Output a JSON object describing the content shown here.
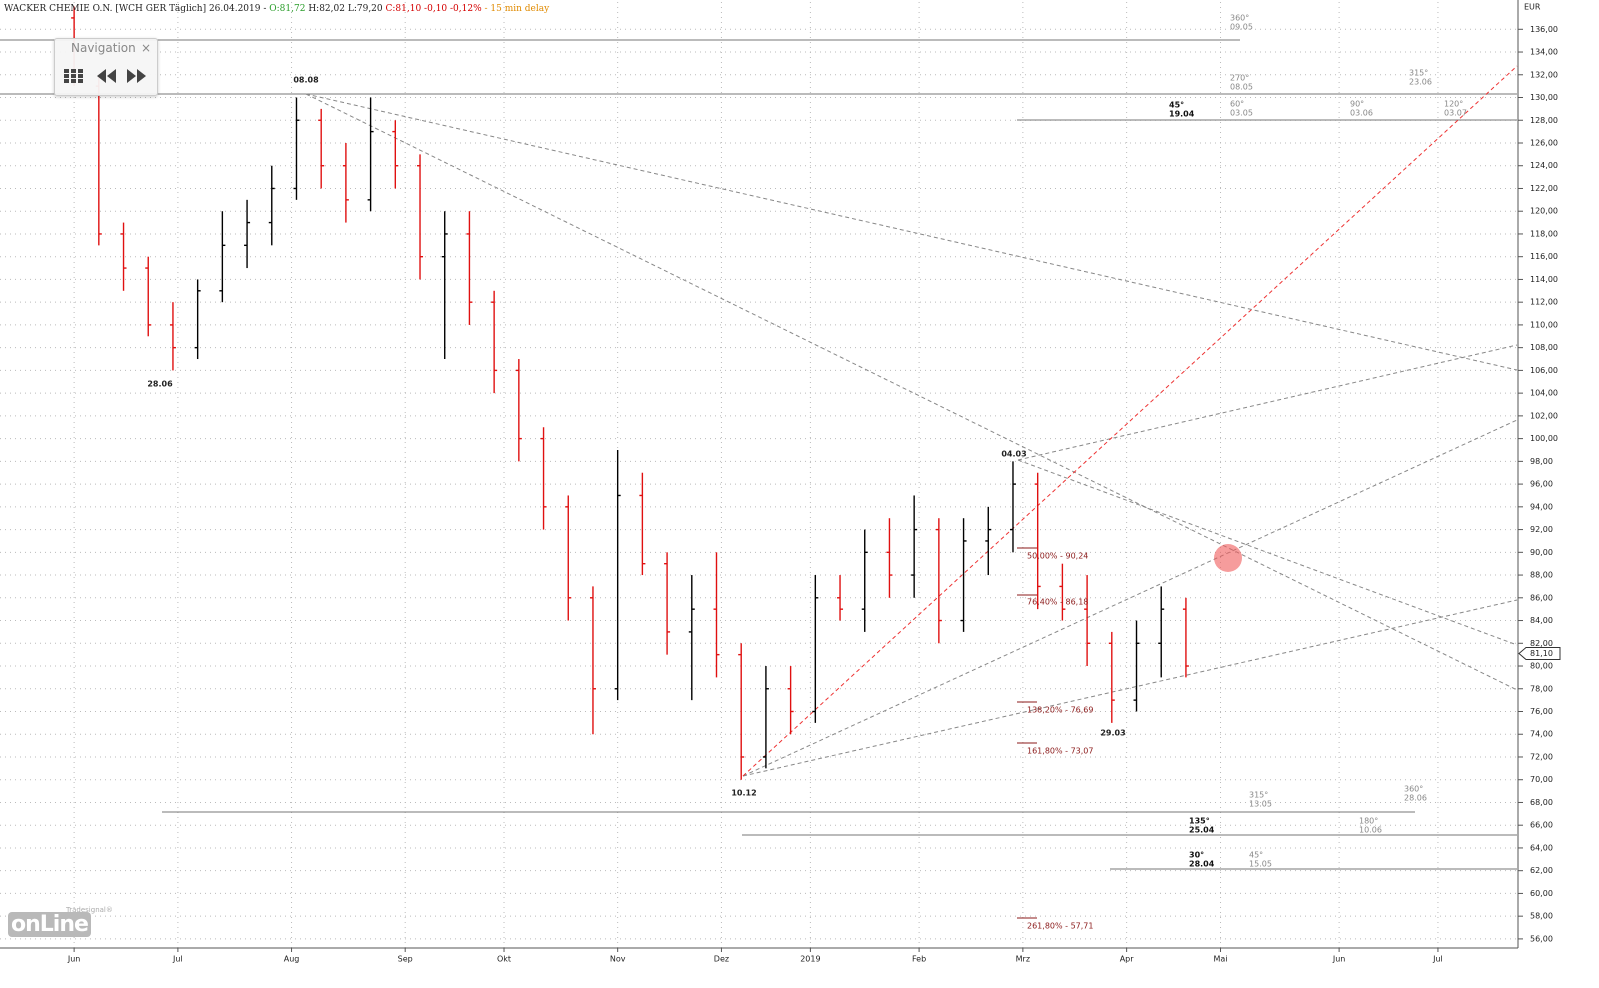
{
  "header": {
    "name": "WACKER CHEMIE O.N. [WCH GER Täglich] 26.04.2019 -",
    "open": "O:81,72",
    "high": "H:82,02",
    "low": "L:79,20",
    "close": "C:81,10 -0,10 -0,12%",
    "delay": "- 15 min delay"
  },
  "navigation": {
    "title": "Navigation",
    "close": "×"
  },
  "logo": {
    "mark": "onLine",
    "brand": "Tradesignal®"
  },
  "annotations": {
    "dates": [
      "08.08",
      "28.06",
      "04.03",
      "10.12",
      "29.03"
    ],
    "fibonacci": [
      "50,00% - 90,24",
      "76,40% - 86,18",
      "138,20% - 76,69",
      "161,80% - 73,07",
      "261,80% - 57,71"
    ],
    "gann": [
      {
        "angle": "360°",
        "date": "09.05"
      },
      {
        "angle": "270°",
        "date": "08.05"
      },
      {
        "angle": "315°",
        "date": "23.06"
      },
      {
        "angle": "45°",
        "date": "19.04"
      },
      {
        "angle": "60°",
        "date": "03.05"
      },
      {
        "angle": "90°",
        "date": "03.06"
      },
      {
        "angle": "120°",
        "date": "03.07"
      },
      {
        "angle": "315°",
        "date": "13.05"
      },
      {
        "angle": "360°",
        "date": "28.06"
      },
      {
        "angle": "135°",
        "date": "25.04"
      },
      {
        "angle": "180°",
        "date": "10.06"
      },
      {
        "angle": "30°",
        "date": "28.04"
      },
      {
        "angle": "45°",
        "date": "15.05"
      }
    ]
  },
  "chart_data": {
    "type": "ohlc",
    "unit": "EUR",
    "x": [
      0,
      5,
      10,
      15,
      20,
      25,
      30,
      35,
      40,
      45,
      50,
      55,
      60,
      65,
      70,
      75,
      80,
      85,
      90,
      95,
      100,
      105,
      110,
      115,
      120,
      125,
      130,
      135,
      140,
      145,
      150,
      155,
      160,
      165,
      170,
      175,
      180,
      185,
      190,
      195,
      200,
      205,
      210,
      215,
      220,
      225
    ],
    "open": [
      137,
      131,
      118,
      115,
      110,
      108,
      113,
      117,
      119,
      122,
      128,
      124,
      121,
      127,
      124,
      116,
      118,
      112,
      106,
      100,
      94,
      86,
      78,
      95,
      89,
      83,
      85,
      81,
      72,
      78,
      76,
      86,
      85,
      90,
      88,
      92,
      84,
      91,
      92,
      96,
      87,
      85,
      82,
      77,
      82,
      85
    ],
    "high": [
      138,
      132,
      119,
      116,
      112,
      114,
      120,
      121,
      124,
      130,
      129,
      126,
      130,
      128,
      125,
      120,
      120,
      113,
      107,
      101,
      95,
      87,
      99,
      97,
      90,
      88,
      90,
      82,
      80,
      80,
      88,
      88,
      92,
      93,
      95,
      93,
      93,
      94,
      98,
      97,
      89,
      88,
      83,
      84,
      87,
      86
    ],
    "low": [
      131,
      117,
      113,
      109,
      106,
      107,
      112,
      115,
      117,
      121,
      122,
      119,
      120,
      122,
      114,
      107,
      110,
      104,
      98,
      92,
      84,
      74,
      77,
      88,
      81,
      77,
      79,
      70,
      71,
      74,
      75,
      84,
      83,
      86,
      86,
      82,
      83,
      88,
      90,
      85,
      84,
      80,
      75,
      76,
      79,
      79
    ],
    "close": [
      132,
      118,
      115,
      110,
      108,
      113,
      117,
      119,
      122,
      128,
      124,
      121,
      127,
      124,
      116,
      118,
      112,
      106,
      100,
      94,
      86,
      78,
      95,
      89,
      83,
      85,
      81,
      72,
      78,
      76,
      86,
      85,
      90,
      88,
      92,
      84,
      91,
      92,
      96,
      87,
      85,
      82,
      77,
      82,
      85,
      80
    ],
    "up_color": "#000000",
    "down_color": "#e01010",
    "last_price": {
      "value": 81.1,
      "label": "81,10"
    },
    "xlim": [
      -15,
      292
    ],
    "xticks": [
      {
        "value": 0,
        "label": "Jun"
      },
      {
        "value": 21,
        "label": "Jul"
      },
      {
        "value": 44,
        "label": "Aug"
      },
      {
        "value": 67,
        "label": "Sep"
      },
      {
        "value": 87,
        "label": "Okt"
      },
      {
        "value": 110,
        "label": "Nov"
      },
      {
        "value": 131,
        "label": "Dez"
      },
      {
        "value": 149,
        "label": "2019"
      },
      {
        "value": 171,
        "label": "Feb"
      },
      {
        "value": 192,
        "label": "Mrz"
      },
      {
        "value": 213,
        "label": "Apr"
      },
      {
        "value": 232,
        "label": "Mai"
      },
      {
        "value": 256,
        "label": "Jun"
      },
      {
        "value": 276,
        "label": "Jul"
      }
    ],
    "ylim": [
      55.2,
      138.4
    ],
    "yticks": [
      {
        "value": 56,
        "label": "56,00"
      },
      {
        "value": 58,
        "label": "58,00"
      },
      {
        "value": 60,
        "label": "60,00"
      },
      {
        "value": 62,
        "label": "62,00"
      },
      {
        "value": 64,
        "label": "64,00"
      },
      {
        "value": 66,
        "label": "66,00"
      },
      {
        "value": 68,
        "label": "68,00"
      },
      {
        "value": 70,
        "label": "70,00"
      },
      {
        "value": 72,
        "label": "72,00"
      },
      {
        "value": 74,
        "label": "74,00"
      },
      {
        "value": 76,
        "label": "76,00"
      },
      {
        "value": 78,
        "label": "78,00"
      },
      {
        "value": 80,
        "label": "80,00"
      },
      {
        "value": 82,
        "label": "82,00"
      },
      {
        "value": 84,
        "label": "84,00"
      },
      {
        "value": 86,
        "label": "86,00"
      },
      {
        "value": 88,
        "label": "88,00"
      },
      {
        "value": 90,
        "label": "90,00"
      },
      {
        "value": 92,
        "label": "92,00"
      },
      {
        "value": 94,
        "label": "94,00"
      },
      {
        "value": 96,
        "label": "96,00"
      },
      {
        "value": 98,
        "label": "98,00"
      },
      {
        "value": 100,
        "label": "100,00"
      },
      {
        "value": 102,
        "label": "102,00"
      },
      {
        "value": 104,
        "label": "104,00"
      },
      {
        "value": 106,
        "label": "106,00"
      },
      {
        "value": 108,
        "label": "108,00"
      },
      {
        "value": 110,
        "label": "110,00"
      },
      {
        "value": 112,
        "label": "112,00"
      },
      {
        "value": 114,
        "label": "114,00"
      },
      {
        "value": 116,
        "label": "116,00"
      },
      {
        "value": 118,
        "label": "118,00"
      },
      {
        "value": 120,
        "label": "120,00"
      },
      {
        "value": 122,
        "label": "122,00"
      },
      {
        "value": 124,
        "label": "124,00"
      },
      {
        "value": 126,
        "label": "126,00"
      },
      {
        "value": 128,
        "label": "128,00"
      },
      {
        "value": 130,
        "label": "130,00"
      },
      {
        "value": 132,
        "label": "132,00"
      },
      {
        "value": 134,
        "label": "134,00"
      },
      {
        "value": 136,
        "label": "136,00"
      }
    ],
    "grid": true
  }
}
